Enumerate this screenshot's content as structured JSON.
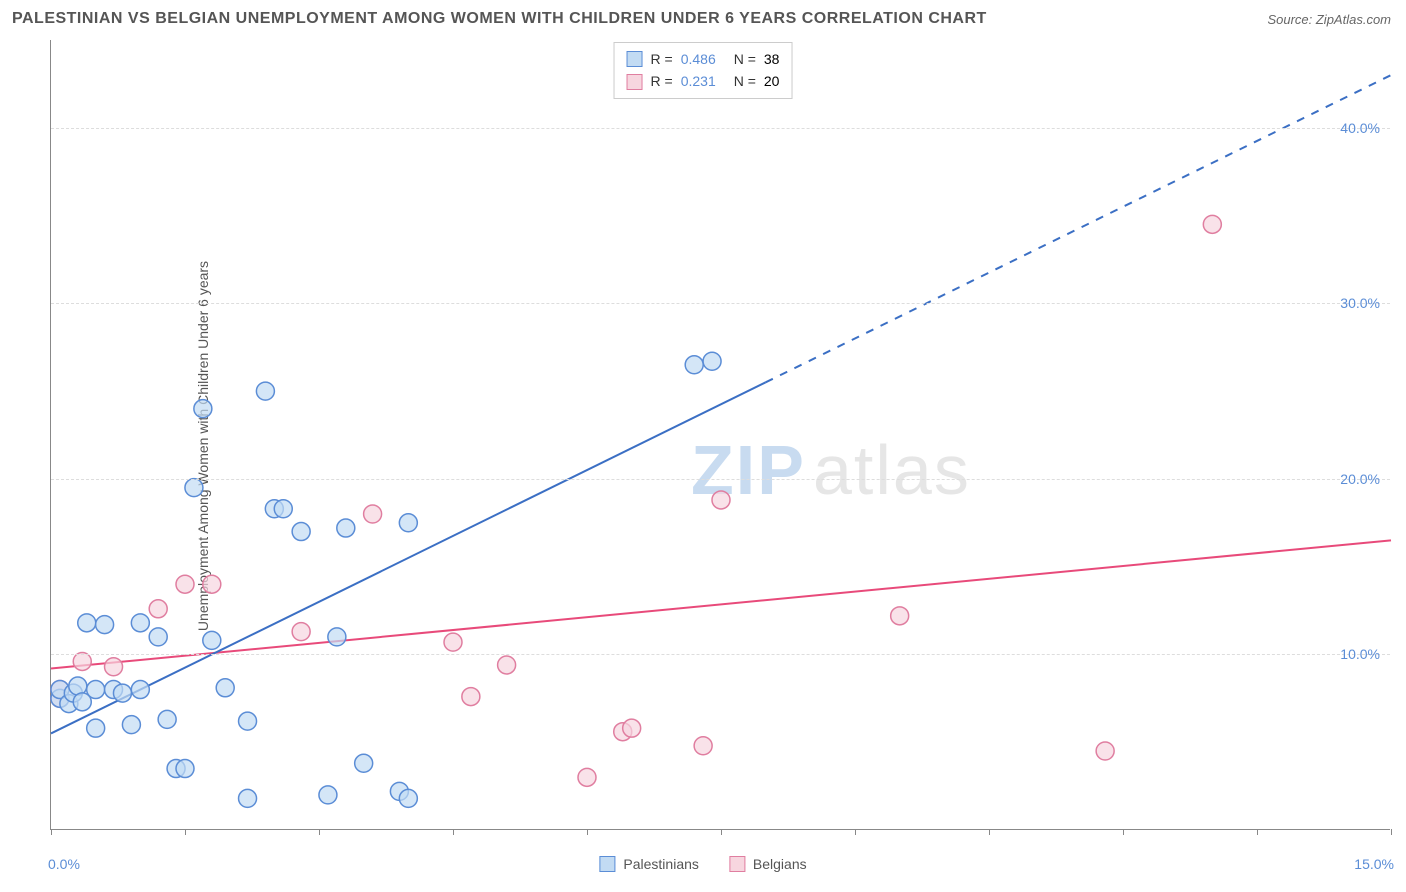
{
  "chart": {
    "type": "scatter-correlation",
    "title": "PALESTINIAN VS BELGIAN UNEMPLOYMENT AMONG WOMEN WITH CHILDREN UNDER 6 YEARS CORRELATION CHART",
    "source": "Source: ZipAtlas.com",
    "watermark_primary": "ZIP",
    "watermark_secondary": "atlas",
    "background_color": "#ffffff",
    "grid_color": "#dddddd",
    "axis_color": "#888888",
    "tick_label_color": "#5b8dd6",
    "title_color": "#555555",
    "title_fontsize": 16,
    "axis_label_fontsize": 14,
    "ylabel": "Unemployment Among Women with Children Under 6 years",
    "xlim": [
      0,
      15
    ],
    "ylim": [
      0,
      45
    ],
    "xtick_labels": {
      "left": "0.0%",
      "right": "15.0%"
    },
    "xtick_positions": [
      0,
      1.5,
      3.0,
      4.5,
      6.0,
      7.5,
      9.0,
      10.5,
      12.0,
      13.5,
      15.0
    ],
    "ytick_labels": [
      "10.0%",
      "20.0%",
      "30.0%",
      "40.0%"
    ],
    "ytick_values": [
      10,
      20,
      30,
      40
    ],
    "marker_radius": 9,
    "marker_stroke_width": 1.5,
    "line_width": 2,
    "series": {
      "palestinians": {
        "label": "Palestinians",
        "fill": "#c2dbf3",
        "stroke": "#5b8dd6",
        "line_color": "#3b6fc4",
        "r_value": "0.486",
        "n_value": "38",
        "regression": {
          "x1": 0,
          "y1": 5.5,
          "x2": 15,
          "y2": 43.0,
          "solid_until_x": 8.0
        },
        "points": [
          [
            0.1,
            7.5
          ],
          [
            0.1,
            8.0
          ],
          [
            0.2,
            7.2
          ],
          [
            0.25,
            7.8
          ],
          [
            0.3,
            8.2
          ],
          [
            0.35,
            7.3
          ],
          [
            0.4,
            11.8
          ],
          [
            0.5,
            8.0
          ],
          [
            0.5,
            5.8
          ],
          [
            0.6,
            11.7
          ],
          [
            0.7,
            8.0
          ],
          [
            0.8,
            7.8
          ],
          [
            0.9,
            6.0
          ],
          [
            1.0,
            11.8
          ],
          [
            1.0,
            8.0
          ],
          [
            1.2,
            11.0
          ],
          [
            1.3,
            6.3
          ],
          [
            1.4,
            3.5
          ],
          [
            1.5,
            3.5
          ],
          [
            1.6,
            19.5
          ],
          [
            1.7,
            24.0
          ],
          [
            1.8,
            10.8
          ],
          [
            1.95,
            8.1
          ],
          [
            2.2,
            6.2
          ],
          [
            2.2,
            1.8
          ],
          [
            2.4,
            25.0
          ],
          [
            2.5,
            18.3
          ],
          [
            2.6,
            18.3
          ],
          [
            2.8,
            17.0
          ],
          [
            3.1,
            2.0
          ],
          [
            3.2,
            11.0
          ],
          [
            3.3,
            17.2
          ],
          [
            3.5,
            3.8
          ],
          [
            3.9,
            2.2
          ],
          [
            4.0,
            17.5
          ],
          [
            4.0,
            1.8
          ],
          [
            7.2,
            26.5
          ],
          [
            7.4,
            26.7
          ]
        ]
      },
      "belgians": {
        "label": "Belgians",
        "fill": "#f7d6df",
        "stroke": "#e07ea0",
        "line_color": "#e84a7a",
        "r_value": "0.231",
        "n_value": "20",
        "regression": {
          "x1": 0,
          "y1": 9.2,
          "x2": 15,
          "y2": 16.5,
          "solid_until_x": 15
        },
        "points": [
          [
            0.1,
            7.5
          ],
          [
            0.1,
            8.0
          ],
          [
            0.35,
            9.6
          ],
          [
            0.7,
            9.3
          ],
          [
            1.2,
            12.6
          ],
          [
            1.5,
            14.0
          ],
          [
            1.8,
            14.0
          ],
          [
            2.8,
            11.3
          ],
          [
            3.6,
            18.0
          ],
          [
            4.5,
            10.7
          ],
          [
            4.7,
            7.6
          ],
          [
            5.1,
            9.4
          ],
          [
            6.0,
            3.0
          ],
          [
            6.4,
            5.6
          ],
          [
            6.5,
            5.8
          ],
          [
            7.3,
            4.8
          ],
          [
            7.5,
            18.8
          ],
          [
            9.5,
            12.2
          ],
          [
            11.8,
            4.5
          ],
          [
            13.0,
            34.5
          ]
        ]
      }
    },
    "legend_box": {
      "rows": [
        {
          "series": "palestinians",
          "r_label": "R =",
          "n_label": "N ="
        },
        {
          "series": "belgians",
          "r_label": "R =",
          "n_label": "N ="
        }
      ]
    }
  }
}
